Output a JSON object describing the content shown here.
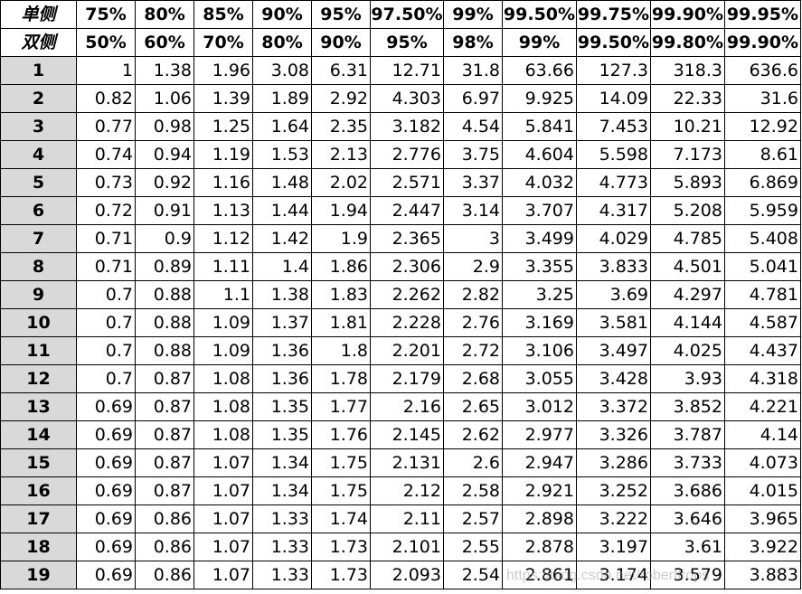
{
  "table": {
    "header_rows": [
      {
        "label": "单侧",
        "values": [
          "75%",
          "80%",
          "85%",
          "90%",
          "95%",
          "97.50%",
          "99%",
          "99.50%",
          "99.75%",
          "99.90%",
          "99.95%"
        ]
      },
      {
        "label": "双侧",
        "values": [
          "50%",
          "60%",
          "70%",
          "80%",
          "90%",
          "95%",
          "98%",
          "99%",
          "99.50%",
          "99.80%",
          "99.90%"
        ]
      }
    ],
    "rows": [
      {
        "df": "1",
        "values": [
          "1",
          "1.38",
          "1.96",
          "3.08",
          "6.31",
          "12.71",
          "31.8",
          "63.66",
          "127.3",
          "318.3",
          "636.6"
        ]
      },
      {
        "df": "2",
        "values": [
          "0.82",
          "1.06",
          "1.39",
          "1.89",
          "2.92",
          "4.303",
          "6.97",
          "9.925",
          "14.09",
          "22.33",
          "31.6"
        ]
      },
      {
        "df": "3",
        "values": [
          "0.77",
          "0.98",
          "1.25",
          "1.64",
          "2.35",
          "3.182",
          "4.54",
          "5.841",
          "7.453",
          "10.21",
          "12.92"
        ]
      },
      {
        "df": "4",
        "values": [
          "0.74",
          "0.94",
          "1.19",
          "1.53",
          "2.13",
          "2.776",
          "3.75",
          "4.604",
          "5.598",
          "7.173",
          "8.61"
        ]
      },
      {
        "df": "5",
        "values": [
          "0.73",
          "0.92",
          "1.16",
          "1.48",
          "2.02",
          "2.571",
          "3.37",
          "4.032",
          "4.773",
          "5.893",
          "6.869"
        ]
      },
      {
        "df": "6",
        "values": [
          "0.72",
          "0.91",
          "1.13",
          "1.44",
          "1.94",
          "2.447",
          "3.14",
          "3.707",
          "4.317",
          "5.208",
          "5.959"
        ]
      },
      {
        "df": "7",
        "values": [
          "0.71",
          "0.9",
          "1.12",
          "1.42",
          "1.9",
          "2.365",
          "3",
          "3.499",
          "4.029",
          "4.785",
          "5.408"
        ]
      },
      {
        "df": "8",
        "values": [
          "0.71",
          "0.89",
          "1.11",
          "1.4",
          "1.86",
          "2.306",
          "2.9",
          "3.355",
          "3.833",
          "4.501",
          "5.041"
        ]
      },
      {
        "df": "9",
        "values": [
          "0.7",
          "0.88",
          "1.1",
          "1.38",
          "1.83",
          "2.262",
          "2.82",
          "3.25",
          "3.69",
          "4.297",
          "4.781"
        ]
      },
      {
        "df": "10",
        "values": [
          "0.7",
          "0.88",
          "1.09",
          "1.37",
          "1.81",
          "2.228",
          "2.76",
          "3.169",
          "3.581",
          "4.144",
          "4.587"
        ]
      },
      {
        "df": "11",
        "values": [
          "0.7",
          "0.88",
          "1.09",
          "1.36",
          "1.8",
          "2.201",
          "2.72",
          "3.106",
          "3.497",
          "4.025",
          "4.437"
        ]
      },
      {
        "df": "12",
        "values": [
          "0.7",
          "0.87",
          "1.08",
          "1.36",
          "1.78",
          "2.179",
          "2.68",
          "3.055",
          "3.428",
          "3.93",
          "4.318"
        ]
      },
      {
        "df": "13",
        "values": [
          "0.69",
          "0.87",
          "1.08",
          "1.35",
          "1.77",
          "2.16",
          "2.65",
          "3.012",
          "3.372",
          "3.852",
          "4.221"
        ]
      },
      {
        "df": "14",
        "values": [
          "0.69",
          "0.87",
          "1.08",
          "1.35",
          "1.76",
          "2.145",
          "2.62",
          "2.977",
          "3.326",
          "3.787",
          "4.14"
        ]
      },
      {
        "df": "15",
        "values": [
          "0.69",
          "0.87",
          "1.07",
          "1.34",
          "1.75",
          "2.131",
          "2.6",
          "2.947",
          "3.286",
          "3.733",
          "4.073"
        ]
      },
      {
        "df": "16",
        "values": [
          "0.69",
          "0.87",
          "1.07",
          "1.34",
          "1.75",
          "2.12",
          "2.58",
          "2.921",
          "3.252",
          "3.686",
          "4.015"
        ]
      },
      {
        "df": "17",
        "values": [
          "0.69",
          "0.86",
          "1.07",
          "1.33",
          "1.74",
          "2.11",
          "2.57",
          "2.898",
          "3.222",
          "3.646",
          "3.965"
        ]
      },
      {
        "df": "18",
        "values": [
          "0.69",
          "0.86",
          "1.07",
          "1.33",
          "1.73",
          "2.101",
          "2.55",
          "2.878",
          "3.197",
          "3.61",
          "3.922"
        ]
      },
      {
        "df": "19",
        "values": [
          "0.69",
          "0.86",
          "1.07",
          "1.33",
          "1.73",
          "2.093",
          "2.54",
          "2.861",
          "3.174",
          "3.579",
          "3.883"
        ]
      }
    ]
  },
  "watermark": "https://blog.csdn.net/robertlrops",
  "colors": {
    "header_shade": "#d9d9d9",
    "grid": "#000000",
    "background": "#ffffff"
  }
}
